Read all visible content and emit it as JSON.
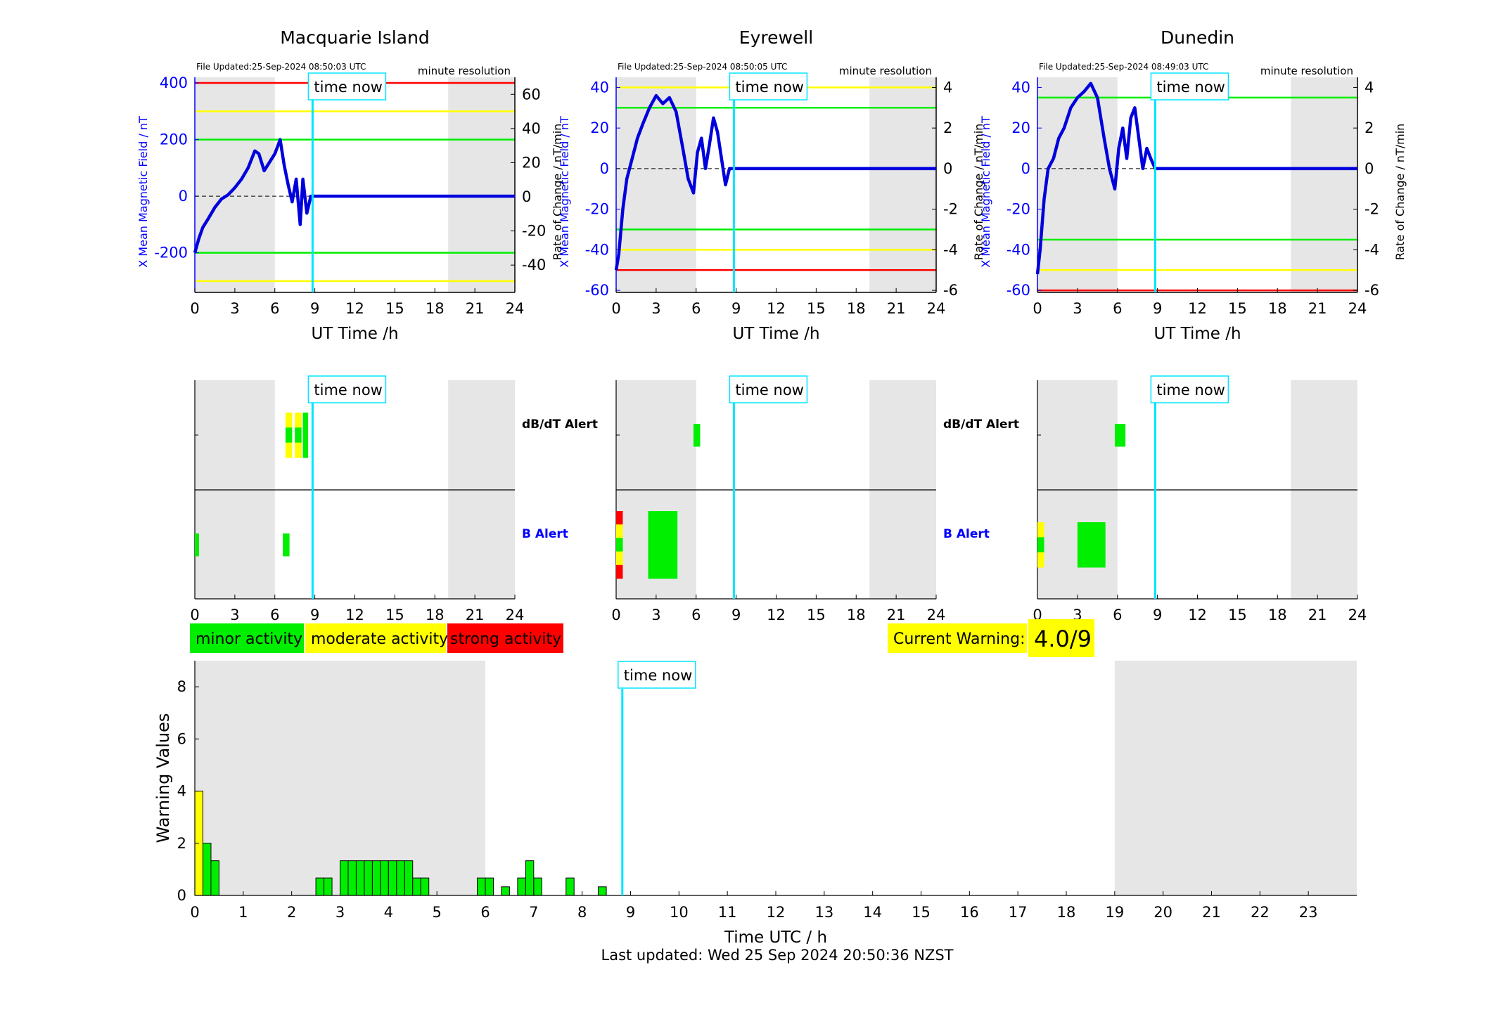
{
  "chart_data": [
    {
      "type": "line",
      "title": "Macquarie Island",
      "file_updated": "File Updated:25-Sep-2024 08:50:03 UTC",
      "resolution": "minute resolution",
      "xlabel": "UT Time /h",
      "ylabel": "X Mean Magnetic Field / nT",
      "ylabel_right": "Rate of Change / nT/min",
      "xlim": [
        0,
        24
      ],
      "ylim": [
        -340,
        420
      ],
      "ylim_right": [
        -56,
        70
      ],
      "xticks": [
        "0",
        "3",
        "6",
        "9",
        "12",
        "15",
        "18",
        "21",
        "24"
      ],
      "yticks": [
        "400",
        "200",
        "0",
        "-200"
      ],
      "yticks_right": [
        "60",
        "40",
        "20",
        "0",
        "-20",
        "-40"
      ],
      "yticks_right_values": [
        60,
        40,
        20,
        0,
        -20,
        -40
      ],
      "yticks_values": [
        400,
        200,
        0,
        -200
      ],
      "night_shading": [
        [
          0,
          6
        ],
        [
          19,
          24
        ]
      ],
      "now_hour": 8.83,
      "now_label": "time now",
      "thresholds": [
        {
          "value": 400,
          "color": "#ff0000"
        },
        {
          "value": 300,
          "color": "#ffff00"
        },
        {
          "value": 200,
          "color": "#00ee00"
        },
        {
          "value": -200,
          "color": "#00ee00"
        },
        {
          "value": -300,
          "color": "#ffff00"
        }
      ],
      "series": [
        {
          "x": [
            0,
            0.3,
            0.6,
            1,
            1.5,
            2,
            2.5,
            3,
            3.5,
            4,
            4.5,
            4.8,
            5.2,
            5.6,
            6,
            6.4,
            6.7,
            7,
            7.3,
            7.6,
            7.9,
            8.1,
            8.4,
            8.7,
            8.83,
            24
          ],
          "values": [
            -200,
            -150,
            -110,
            -80,
            -40,
            -10,
            5,
            30,
            60,
            100,
            160,
            150,
            90,
            120,
            150,
            200,
            110,
            40,
            -20,
            60,
            -100,
            60,
            -60,
            0,
            0,
            0
          ]
        }
      ]
    },
    {
      "type": "line",
      "title": "Eyrewell",
      "file_updated": "File Updated:25-Sep-2024 08:50:05 UTC",
      "resolution": "minute resolution",
      "xlabel": "UT Time /h",
      "ylabel": "X Mean Magnetic Field / nT",
      "ylabel_right": "Rate of Change / nT/min",
      "xlim": [
        0,
        24
      ],
      "ylim": [
        -61,
        45
      ],
      "ylim_right": [
        -6.1,
        4.5
      ],
      "xticks": [
        "0",
        "3",
        "6",
        "9",
        "12",
        "15",
        "18",
        "21",
        "24"
      ],
      "yticks": [
        "40",
        "20",
        "0",
        "-20",
        "-40",
        "-60"
      ],
      "yticks_right": [
        "4",
        "2",
        "0",
        "-2",
        "-4",
        "-6"
      ],
      "yticks_right_values": [
        4,
        2,
        0,
        -2,
        -4,
        -6
      ],
      "yticks_values": [
        40,
        20,
        0,
        -20,
        -40,
        -60
      ],
      "night_shading": [
        [
          0,
          6
        ],
        [
          19,
          24
        ]
      ],
      "now_hour": 8.83,
      "now_label": "time now",
      "thresholds": [
        {
          "value": 40,
          "color": "#ffff00"
        },
        {
          "value": 30,
          "color": "#00ee00"
        },
        {
          "value": -30,
          "color": "#00ee00"
        },
        {
          "value": -40,
          "color": "#ffff00"
        },
        {
          "value": -50,
          "color": "#ff0000"
        }
      ],
      "series": [
        {
          "x": [
            0,
            0.2,
            0.5,
            0.8,
            1.2,
            1.6,
            2,
            2.5,
            3,
            3.5,
            4,
            4.5,
            5,
            5.4,
            5.8,
            6.1,
            6.4,
            6.7,
            7,
            7.3,
            7.6,
            7.9,
            8.2,
            8.5,
            8.83,
            24
          ],
          "values": [
            -50,
            -42,
            -20,
            -5,
            5,
            15,
            22,
            30,
            36,
            32,
            35,
            28,
            10,
            -5,
            -12,
            8,
            15,
            0,
            12,
            25,
            18,
            5,
            -8,
            0,
            0,
            0
          ]
        }
      ]
    },
    {
      "type": "line",
      "title": "Dunedin",
      "file_updated": "File Updated:25-Sep-2024 08:49:03 UTC",
      "resolution": "minute resolution",
      "xlabel": "UT Time /h",
      "ylabel": "X Mean Magnetic Field / nT",
      "ylabel_right": "Rate of Change / nT/min",
      "xlim": [
        0,
        24
      ],
      "ylim": [
        -61,
        45
      ],
      "ylim_right": [
        -6.1,
        4.5
      ],
      "xticks": [
        "0",
        "3",
        "6",
        "9",
        "12",
        "15",
        "18",
        "21",
        "24"
      ],
      "yticks": [
        "40",
        "20",
        "0",
        "-20",
        "-40",
        "-60"
      ],
      "yticks_right": [
        "4",
        "2",
        "0",
        "-2",
        "-4",
        "-6"
      ],
      "yticks_right_values": [
        4,
        2,
        0,
        -2,
        -4,
        -6
      ],
      "yticks_values": [
        40,
        20,
        0,
        -20,
        -40,
        -60
      ],
      "night_shading": [
        [
          0,
          6
        ],
        [
          19,
          24
        ]
      ],
      "now_hour": 8.83,
      "now_label": "time now",
      "thresholds": [
        {
          "value": 35,
          "color": "#00ee00"
        },
        {
          "value": -35,
          "color": "#00ee00"
        },
        {
          "value": -50,
          "color": "#ffff00"
        },
        {
          "value": -60,
          "color": "#ff0000"
        }
      ],
      "series": [
        {
          "x": [
            0,
            0.2,
            0.5,
            0.8,
            1.2,
            1.6,
            2,
            2.5,
            3,
            3.5,
            4,
            4.5,
            5,
            5.4,
            5.8,
            6.1,
            6.4,
            6.7,
            7,
            7.3,
            7.6,
            7.9,
            8.2,
            8.5,
            8.83,
            24
          ],
          "values": [
            -52,
            -40,
            -15,
            0,
            5,
            15,
            20,
            30,
            35,
            38,
            42,
            35,
            15,
            0,
            -10,
            10,
            20,
            5,
            25,
            30,
            15,
            0,
            10,
            5,
            0,
            0
          ]
        }
      ]
    }
  ],
  "alerts": [
    {
      "dbdt": [
        {
          "x0": 6.8,
          "x1": 7.3,
          "colors": [
            "#ffff00",
            "#00ee00",
            "#ffff00"
          ]
        },
        {
          "x0": 7.5,
          "x1": 8.0,
          "colors": [
            "#ffff00",
            "#00ee00",
            "#ffff00"
          ]
        },
        {
          "x0": 8.1,
          "x1": 8.5,
          "colors": [
            "#00ee00"
          ]
        }
      ],
      "b": [
        {
          "x0": 0,
          "x1": 0.3,
          "colors": [
            "#00ee00"
          ]
        },
        {
          "x0": 6.6,
          "x1": 7.1,
          "colors": [
            "#00ee00"
          ]
        }
      ]
    },
    {
      "dbdt": [
        {
          "x0": 5.8,
          "x1": 6.3,
          "colors": [
            "#00ee00"
          ]
        }
      ],
      "b": [
        {
          "x0": 0,
          "x1": 0.5,
          "colors": [
            "#ff0000",
            "#ffff00",
            "#00ee00",
            "#ffff00",
            "#ff0000"
          ]
        },
        {
          "x0": 2.4,
          "x1": 4.6,
          "colors": [
            "#00ee00"
          ]
        }
      ]
    },
    {
      "dbdt": [
        {
          "x0": 5.8,
          "x1": 6.6,
          "colors": [
            "#00ee00"
          ]
        }
      ],
      "b": [
        {
          "x0": 0,
          "x1": 0.5,
          "colors": [
            "#ffff00",
            "#00ee00",
            "#ffff00"
          ]
        },
        {
          "x0": 3.0,
          "x1": 5.1,
          "colors": [
            "#00ee00"
          ]
        }
      ]
    }
  ],
  "alert_labels": {
    "dbdt": "dB/dT Alert",
    "b": "B Alert"
  },
  "legend": [
    {
      "label": "minor activity",
      "color": "#00ee00"
    },
    {
      "label": "moderate activity",
      "color": "#ffff00"
    },
    {
      "label": "strong activity",
      "color": "#ff0000"
    }
  ],
  "current_warning": {
    "label": "Current Warning:",
    "value": "4.0/9"
  },
  "warnings": {
    "xlabel": "Time UTC / h",
    "ylabel": "Warning Values",
    "xlim": [
      0,
      24
    ],
    "ylim": [
      0,
      9
    ],
    "xticks": [
      "0",
      "1",
      "2",
      "3",
      "4",
      "5",
      "6",
      "7",
      "8",
      "9",
      "10",
      "11",
      "12",
      "13",
      "14",
      "15",
      "16",
      "17",
      "18",
      "19",
      "20",
      "21",
      "22",
      "23"
    ],
    "yticks": [
      "0",
      "2",
      "4",
      "6",
      "8"
    ],
    "now_hour": 8.83,
    "now_label": "time now",
    "night_shading": [
      [
        0,
        6
      ],
      [
        19,
        24
      ]
    ],
    "bars": [
      {
        "x": 0.0,
        "value": 4,
        "color": "#ffff00"
      },
      {
        "x": 0.167,
        "value": 2,
        "color": "#00ee00"
      },
      {
        "x": 0.333,
        "value": 1.33,
        "color": "#00ee00"
      },
      {
        "x": 2.5,
        "value": 0.67,
        "color": "#00ee00"
      },
      {
        "x": 2.667,
        "value": 0.67,
        "color": "#00ee00"
      },
      {
        "x": 3.0,
        "value": 1.33,
        "color": "#00ee00"
      },
      {
        "x": 3.167,
        "value": 1.33,
        "color": "#00ee00"
      },
      {
        "x": 3.333,
        "value": 1.33,
        "color": "#00ee00"
      },
      {
        "x": 3.5,
        "value": 1.33,
        "color": "#00ee00"
      },
      {
        "x": 3.667,
        "value": 1.33,
        "color": "#00ee00"
      },
      {
        "x": 3.833,
        "value": 1.33,
        "color": "#00ee00"
      },
      {
        "x": 4.0,
        "value": 1.33,
        "color": "#00ee00"
      },
      {
        "x": 4.167,
        "value": 1.33,
        "color": "#00ee00"
      },
      {
        "x": 4.333,
        "value": 1.33,
        "color": "#00ee00"
      },
      {
        "x": 4.5,
        "value": 0.67,
        "color": "#00ee00"
      },
      {
        "x": 4.667,
        "value": 0.67,
        "color": "#00ee00"
      },
      {
        "x": 5.833,
        "value": 0.67,
        "color": "#00ee00"
      },
      {
        "x": 6.0,
        "value": 0.67,
        "color": "#00ee00"
      },
      {
        "x": 6.333,
        "value": 0.33,
        "color": "#00ee00"
      },
      {
        "x": 6.667,
        "value": 0.67,
        "color": "#00ee00"
      },
      {
        "x": 6.833,
        "value": 1.33,
        "color": "#00ee00"
      },
      {
        "x": 7.0,
        "value": 0.67,
        "color": "#00ee00"
      },
      {
        "x": 7.667,
        "value": 0.67,
        "color": "#00ee00"
      },
      {
        "x": 8.333,
        "value": 0.33,
        "color": "#00ee00"
      }
    ]
  },
  "last_updated": "Last updated: Wed 25 Sep 2024 20:50:36 NZST"
}
